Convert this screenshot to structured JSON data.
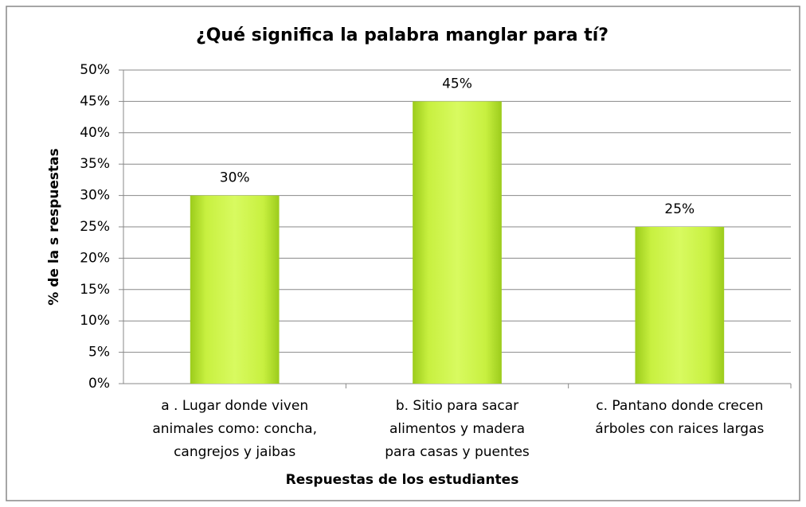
{
  "chart_data": {
    "type": "bar",
    "title": "¿Qué significa la palabra manglar para tí?",
    "x_label": "Respuestas de los estudiantes",
    "y_label": "% de la s respuestas",
    "categories": [
      "a . Lugar donde viven animales como: concha, cangrejos y jaibas",
      "b.  Sitio para sacar alimentos y madera para casas y puentes",
      "c.  Pantano donde crecen árboles con raices largas"
    ],
    "values": [
      30,
      45,
      25
    ],
    "value_labels": [
      "30%",
      "45%",
      "25%"
    ],
    "color": "#c8f040",
    "ylim": [
      0,
      50
    ],
    "yticks": [
      {
        "value": 0,
        "label": "0%"
      },
      {
        "value": 5,
        "label": "5%"
      },
      {
        "value": 10,
        "label": "10%"
      },
      {
        "value": 15,
        "label": "15%"
      },
      {
        "value": 20,
        "label": "20%"
      },
      {
        "value": 25,
        "label": "25%"
      },
      {
        "value": 30,
        "label": "30%"
      },
      {
        "value": 35,
        "label": "35%"
      },
      {
        "value": 40,
        "label": "40%"
      },
      {
        "value": 45,
        "label": "45%"
      },
      {
        "value": 50,
        "label": "50%"
      }
    ],
    "grid": true
  }
}
